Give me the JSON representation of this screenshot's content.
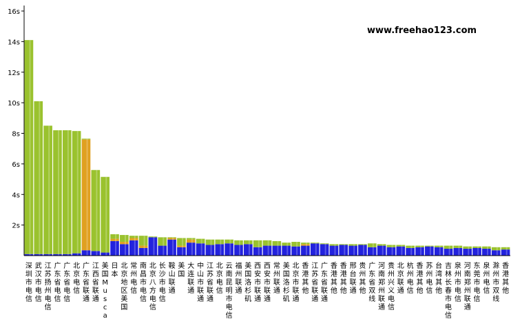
{
  "watermark": "www.freehao123.com",
  "chart_data": {
    "type": "bar",
    "stacked": true,
    "ylim": [
      0,
      16
    ],
    "y_ticks": [
      "2s",
      "4s",
      "6s",
      "8s",
      "10s",
      "12s",
      "14s",
      "16s"
    ],
    "grid": false,
    "legend": "none",
    "colors": {
      "blue": "#2222dd",
      "orange": "#e0a020",
      "green": "#9ac22e",
      "axis": "#000000"
    },
    "categories": [
      "深圳市电信",
      "武汉市电信",
      "江苏扬州电信",
      "广东省电信",
      "广东省电信",
      "北京电信",
      "广东省联通",
      "江西省联通",
      "美国Muscat",
      "日本",
      "北京地区美国",
      "常州电信",
      "南昌市电信",
      "北京八方电信",
      "长沙市电信",
      "鞍山联通",
      "美国",
      "大连联通",
      "中山市联通",
      "江苏省联通",
      "北京电信",
      "云南昆明市电信",
      "福州联通",
      "美国洛杉矶",
      "西安市联通",
      "西安市联通",
      "常州联通",
      "美国洛杉矶",
      "北京市联通",
      "香港其他",
      "江苏省联通",
      "广东省联通",
      "香港其他",
      "香港其他",
      "邢台联通",
      "贵州其他",
      "广东省双线",
      "河南郑州联通",
      "贵州兴义电信",
      "北京联通",
      "杭州电信",
      "香港其他",
      "苏州电信",
      "台湾其他",
      "吉林长春市电信",
      "泉州市电信",
      "河南郑州联通",
      "东莞市电信",
      "泉州电信",
      "滁州市双线",
      "香港其他"
    ],
    "series": [
      {
        "values": [
          0.1,
          0.1,
          0.1,
          0.1,
          0.1,
          0.15,
          0.35,
          0.3,
          0.2,
          0.95,
          0.75,
          1.0,
          0.5,
          1.2,
          0.65,
          1.05,
          0.55,
          0.85,
          0.8,
          0.7,
          0.75,
          0.8,
          0.7,
          0.75,
          0.55,
          0.65,
          0.65,
          0.65,
          0.6,
          0.65,
          0.8,
          0.75,
          0.65,
          0.7,
          0.65,
          0.7,
          0.55,
          0.65,
          0.55,
          0.6,
          0.5,
          0.55,
          0.6,
          0.55,
          0.45,
          0.5,
          0.45,
          0.5,
          0.45,
          0.35,
          0.4
        ]
      },
      {
        "values": [
          0,
          0,
          0,
          0,
          0,
          0,
          7.25,
          0,
          0,
          0.15,
          0.15,
          0.15,
          0.15,
          0,
          0,
          0.1,
          0.1,
          0.2,
          0,
          0,
          0,
          0,
          0,
          0,
          0,
          0,
          0,
          0,
          0,
          0.1,
          0,
          0,
          0,
          0,
          0,
          0,
          0,
          0,
          0,
          0,
          0,
          0,
          0,
          0,
          0,
          0,
          0,
          0,
          0,
          0,
          0
        ]
      },
      {
        "values": [
          14.0,
          10.0,
          8.4,
          8.1,
          8.1,
          8.0,
          0.05,
          5.3,
          4.95,
          0.3,
          0.45,
          0.15,
          0.65,
          0.05,
          0.55,
          0.05,
          0.5,
          0.1,
          0.3,
          0.35,
          0.3,
          0.25,
          0.3,
          0.25,
          0.45,
          0.35,
          0.3,
          0.2,
          0.3,
          0.1,
          0.05,
          0.05,
          0.1,
          0.05,
          0.1,
          0.05,
          0.25,
          0.1,
          0.15,
          0.1,
          0.15,
          0.1,
          0.05,
          0.1,
          0.2,
          0.15,
          0.15,
          0.1,
          0.15,
          0.2,
          0.15
        ]
      }
    ]
  }
}
